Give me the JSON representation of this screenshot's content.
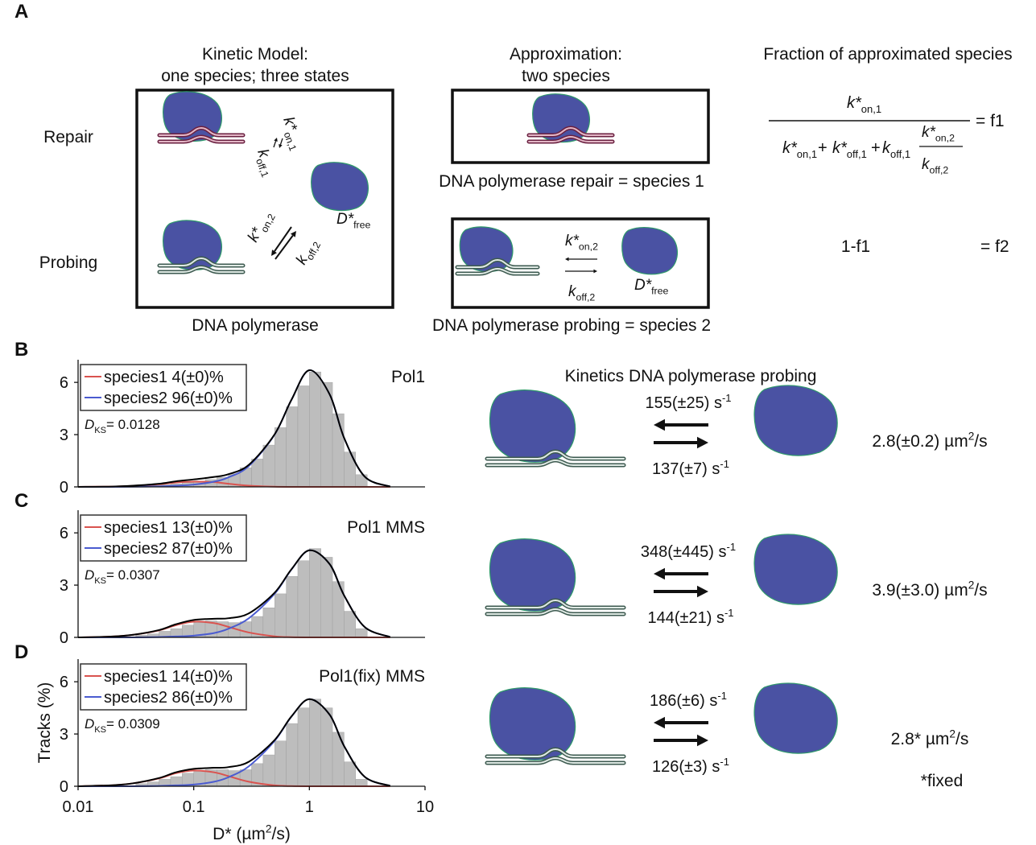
{
  "panel_labels": [
    "A",
    "B",
    "C",
    "D"
  ],
  "panel_a": {
    "kinetic_model": {
      "title": [
        "Kinetic Model:",
        "one species; three states"
      ],
      "row_labels": [
        "Repair",
        "Probing"
      ],
      "caption": "DNA polymerase",
      "kon1": {
        "symbol": "k*",
        "sub": "on,1"
      },
      "koff1": {
        "symbol": "k",
        "sub": "off,1"
      },
      "kon2": {
        "symbol": "k*",
        "sub": "on,2"
      },
      "koff2": {
        "symbol": "k",
        "sub": "off,2"
      },
      "dfree": {
        "symbol": "D*",
        "sub": "free"
      }
    },
    "approximation": {
      "title": [
        "Approximation:",
        "two species"
      ],
      "species1_caption": "DNA polymerase repair = species 1",
      "species2_caption": "DNA polymerase probing = species 2",
      "kon2": {
        "symbol": "k*",
        "sub": "on,2"
      },
      "koff2": {
        "symbol": "k",
        "sub": "off,2"
      },
      "dfree": {
        "symbol": "D*",
        "sub": "free"
      }
    },
    "fraction": {
      "title": "Fraction of approximated species",
      "numerator": {
        "symbol": "k*",
        "sub": "on,1"
      },
      "denominator": [
        {
          "symbol": "k*",
          "sub": "on,1"
        },
        {
          "symbol": "k*",
          "sub": "off,1"
        },
        {
          "symbol": "k",
          "sub": "off,1"
        }
      ],
      "operator": "+",
      "inner_numerator": {
        "symbol": "k*",
        "sub": "on,2"
      },
      "inner_denominator": {
        "symbol": "k",
        "sub": "off,2"
      },
      "result1": "= f1",
      "f2_expr": "1-f1",
      "result2": "= f2"
    }
  },
  "chart_data": [
    {
      "type": "histogram",
      "title": "Pol1",
      "xscale": "log",
      "xlim": [
        0.01,
        10
      ],
      "ylim": [
        0,
        7.3
      ],
      "yticks": [
        0,
        3,
        6
      ],
      "grid": false,
      "legend": "upper left",
      "bins": [
        0.0316,
        0.0398,
        0.0501,
        0.0631,
        0.0794,
        0.1,
        0.1259,
        0.1585,
        0.1995,
        0.2512,
        0.3162,
        0.3981,
        0.5012,
        0.631,
        0.7943,
        1,
        1.2589,
        1.5849,
        1.9953,
        2.5119,
        3.1623
      ],
      "counts": [
        0.05,
        0.08,
        0.12,
        0.17,
        0.25,
        0.33,
        0.42,
        0.55,
        0.75,
        1.1,
        1.6,
        2.4,
        3.4,
        4.6,
        5.8,
        6.6,
        6.0,
        4.2,
        2.0,
        0.7
      ],
      "bar_color": "#bdbdbd",
      "series": [
        {
          "name": "species1 4(±0)%",
          "color": "#d9534f",
          "x": [
            0.01,
            0.02,
            0.03,
            0.05,
            0.07,
            0.1,
            0.15,
            0.2,
            0.3,
            0.5,
            0.7,
            1,
            1.5,
            2,
            3,
            5
          ],
          "values": [
            0,
            0.02,
            0.06,
            0.15,
            0.25,
            0.3,
            0.27,
            0.18,
            0.07,
            0.01,
            0,
            0,
            0,
            0,
            0,
            0
          ]
        },
        {
          "name": "species2 96(±0)%",
          "color": "#4a5bd0",
          "x": [
            0.01,
            0.02,
            0.03,
            0.05,
            0.07,
            0.1,
            0.15,
            0.2,
            0.3,
            0.5,
            0.7,
            1,
            1.5,
            2,
            3,
            5
          ],
          "values": [
            0,
            0,
            0.01,
            0.03,
            0.07,
            0.13,
            0.3,
            0.55,
            1.2,
            3.0,
            5.0,
            6.7,
            5.3,
            2.8,
            0.6,
            0.02
          ]
        }
      ],
      "fit": {
        "color": "#000000",
        "x": [
          0.01,
          0.02,
          0.03,
          0.05,
          0.07,
          0.1,
          0.15,
          0.2,
          0.3,
          0.5,
          0.7,
          1,
          1.5,
          2,
          3,
          5
        ],
        "values": [
          0,
          0.02,
          0.07,
          0.18,
          0.32,
          0.43,
          0.57,
          0.73,
          1.27,
          3.01,
          5.0,
          6.7,
          5.3,
          2.8,
          0.6,
          0.02
        ]
      },
      "annotation": {
        "symbol": "D",
        "sub": "KS",
        "text": "= 0.0128"
      }
    },
    {
      "type": "histogram",
      "title": "Pol1 MMS",
      "xscale": "log",
      "xlim": [
        0.01,
        10
      ],
      "ylim": [
        0,
        7.3
      ],
      "yticks": [
        0,
        3,
        6
      ],
      "grid": false,
      "legend": "upper left",
      "bins": [
        0.0316,
        0.0398,
        0.0501,
        0.0631,
        0.0794,
        0.1,
        0.1259,
        0.1585,
        0.1995,
        0.2512,
        0.3162,
        0.3981,
        0.5012,
        0.631,
        0.7943,
        1,
        1.2589,
        1.5849,
        1.9953,
        2.5119,
        3.1623
      ],
      "counts": [
        0.12,
        0.2,
        0.35,
        0.5,
        0.7,
        0.85,
        0.95,
        0.9,
        0.85,
        0.9,
        1.2,
        1.7,
        2.5,
        3.5,
        4.4,
        5.1,
        4.6,
        3.2,
        1.5,
        0.5
      ],
      "bar_color": "#bdbdbd",
      "series": [
        {
          "name": "species1 13(±0)%",
          "color": "#d9534f",
          "x": [
            0.01,
            0.02,
            0.03,
            0.05,
            0.07,
            0.1,
            0.15,
            0.2,
            0.3,
            0.5,
            0.7,
            1,
            1.5,
            2,
            3,
            5
          ],
          "values": [
            0,
            0.05,
            0.15,
            0.4,
            0.7,
            0.9,
            0.82,
            0.6,
            0.28,
            0.06,
            0.01,
            0,
            0,
            0,
            0,
            0
          ]
        },
        {
          "name": "species2 87(±0)%",
          "color": "#4a5bd0",
          "x": [
            0.01,
            0.02,
            0.03,
            0.05,
            0.07,
            0.1,
            0.15,
            0.2,
            0.3,
            0.5,
            0.7,
            1,
            1.5,
            2,
            3,
            5
          ],
          "values": [
            0,
            0,
            0,
            0.02,
            0.05,
            0.1,
            0.25,
            0.5,
            1.1,
            2.5,
            3.9,
            5.0,
            4.2,
            2.4,
            0.6,
            0.02
          ]
        }
      ],
      "fit": {
        "color": "#000000",
        "x": [
          0.01,
          0.02,
          0.03,
          0.05,
          0.07,
          0.1,
          0.15,
          0.2,
          0.3,
          0.5,
          0.7,
          1,
          1.5,
          2,
          3,
          5
        ],
        "values": [
          0,
          0.05,
          0.15,
          0.42,
          0.75,
          1.0,
          1.07,
          1.1,
          1.38,
          2.56,
          3.91,
          5.0,
          4.2,
          2.4,
          0.6,
          0.02
        ]
      },
      "annotation": {
        "symbol": "D",
        "sub": "KS",
        "text": "= 0.0307"
      }
    },
    {
      "type": "histogram",
      "title": "Pol1(fix) MMS",
      "xscale": "log",
      "xlim": [
        0.01,
        10
      ],
      "ylim": [
        0,
        7.3
      ],
      "yticks": [
        0,
        3,
        6
      ],
      "xticks": [
        0.01,
        0.1,
        1,
        10
      ],
      "grid": false,
      "legend": "upper left",
      "ylabel": "Tracks (%)",
      "xlabel": {
        "text": "D* (µm",
        "sup": "2",
        "tail": "/s)"
      },
      "bins": [
        0.0316,
        0.0398,
        0.0501,
        0.0631,
        0.0794,
        0.1,
        0.1259,
        0.1585,
        0.1995,
        0.2512,
        0.3162,
        0.3981,
        0.5012,
        0.631,
        0.7943,
        1,
        1.2589,
        1.5849,
        1.9953,
        2.5119,
        3.1623
      ],
      "counts": [
        0.15,
        0.25,
        0.4,
        0.55,
        0.75,
        0.9,
        0.95,
        0.95,
        0.9,
        0.95,
        1.3,
        1.8,
        2.6,
        3.6,
        4.5,
        5.0,
        4.5,
        3.1,
        1.4,
        0.4
      ],
      "bar_color": "#bdbdbd",
      "series": [
        {
          "name": "species1 14(±0)%",
          "color": "#d9534f",
          "x": [
            0.01,
            0.02,
            0.03,
            0.05,
            0.07,
            0.1,
            0.15,
            0.2,
            0.3,
            0.5,
            0.7,
            1,
            1.5,
            2,
            3,
            5
          ],
          "values": [
            0,
            0.06,
            0.17,
            0.45,
            0.75,
            0.9,
            0.8,
            0.58,
            0.26,
            0.05,
            0.01,
            0,
            0,
            0,
            0,
            0
          ]
        },
        {
          "name": "species2 86(±0)%",
          "color": "#4a5bd0",
          "x": [
            0.01,
            0.02,
            0.03,
            0.05,
            0.07,
            0.1,
            0.15,
            0.2,
            0.3,
            0.5,
            0.7,
            1,
            1.5,
            2,
            3,
            5
          ],
          "values": [
            0,
            0,
            0,
            0.02,
            0.05,
            0.1,
            0.26,
            0.52,
            1.15,
            2.6,
            4.0,
            5.0,
            4.1,
            2.3,
            0.55,
            0.02
          ]
        }
      ],
      "fit": {
        "color": "#000000",
        "x": [
          0.01,
          0.02,
          0.03,
          0.05,
          0.07,
          0.1,
          0.15,
          0.2,
          0.3,
          0.5,
          0.7,
          1,
          1.5,
          2,
          3,
          5
        ],
        "values": [
          0,
          0.06,
          0.17,
          0.47,
          0.8,
          1.0,
          1.06,
          1.1,
          1.41,
          2.65,
          4.01,
          5.0,
          4.1,
          2.3,
          0.55,
          0.02
        ]
      },
      "annotation": {
        "symbol": "D",
        "sub": "KS",
        "text": "= 0.0309"
      }
    }
  ],
  "kinetics": {
    "title": "Kinetics DNA polymerase probing",
    "rows": [
      {
        "k_on": {
          "text": "155(±25) s",
          "sup": "-1"
        },
        "k_off": {
          "text": "137(±7) s",
          "sup": "-1"
        },
        "diffusion": {
          "text": "2.8(±0.2) µm",
          "sup": "2",
          "tail": "/s"
        }
      },
      {
        "k_on": {
          "text": "348(±445) s",
          "sup": "-1"
        },
        "k_off": {
          "text": "144(±21) s",
          "sup": "-1"
        },
        "diffusion": {
          "text": "3.9(±3.0) µm",
          "sup": "2",
          "tail": "/s"
        }
      },
      {
        "k_on": {
          "text": "186(±6) s",
          "sup": "-1"
        },
        "k_off": {
          "text": "126(±3) s",
          "sup": "-1"
        },
        "diffusion": {
          "text": "2.8* µm",
          "sup": "2",
          "tail": "/s"
        }
      }
    ],
    "note": "*fixed"
  }
}
